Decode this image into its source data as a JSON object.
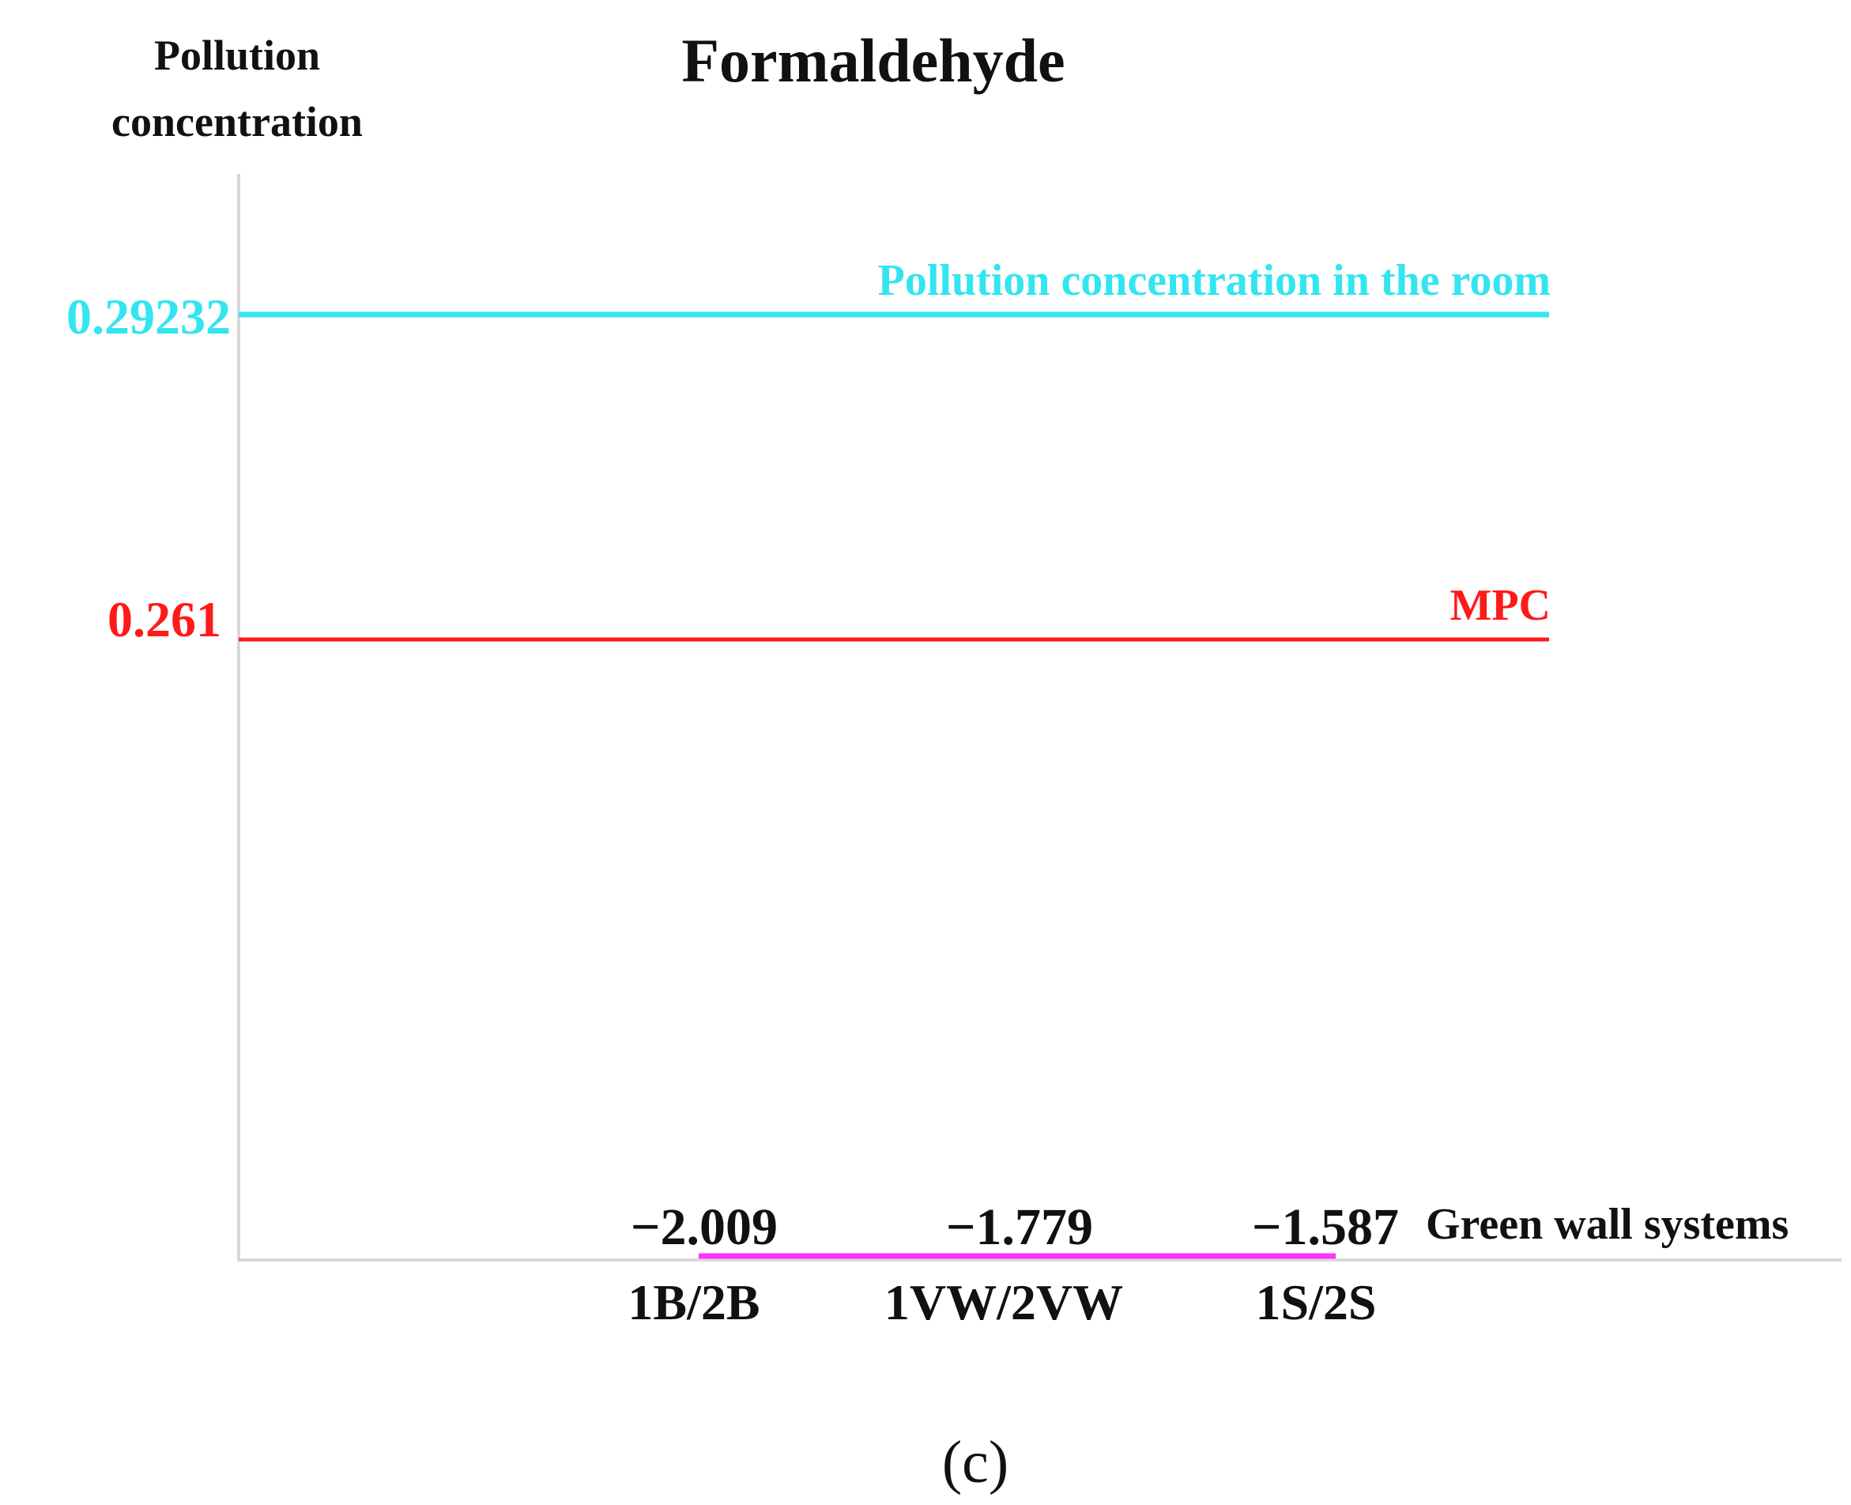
{
  "chart_data": {
    "type": "line",
    "title": "Formaldehyde",
    "ylabel": "Pollution concentration",
    "xlabel": "Green wall systems",
    "panel_label": "(c)",
    "categories": [
      "1B/2B",
      "1VW/2VW",
      "1S/2S"
    ],
    "series": [
      {
        "name": "Green wall systems",
        "values": [
          -2.009,
          -1.779,
          -1.587
        ],
        "value_labels": [
          "−2.009",
          "−1.779",
          "−1.587"
        ],
        "color": "#ff33ff"
      }
    ],
    "reference_lines": [
      {
        "name": "Pollution concentration in the room",
        "value": 0.29232,
        "tick_label": "0.29232",
        "color": "#33e5f0"
      },
      {
        "name": "MPC",
        "value": 0.261,
        "tick_label": "0.261",
        "color": "#ff1a1a"
      }
    ]
  }
}
